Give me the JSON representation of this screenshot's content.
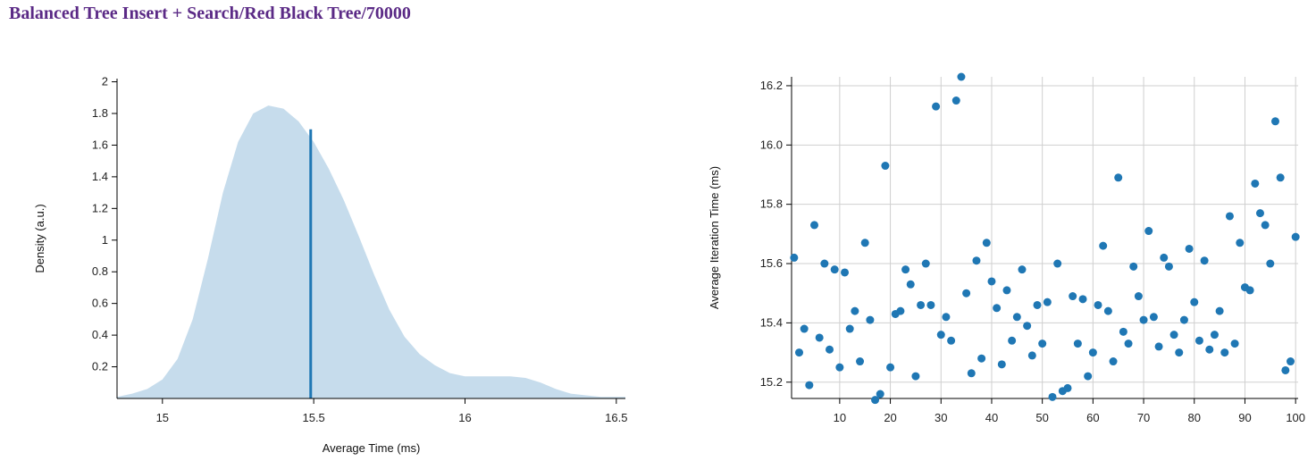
{
  "page": {
    "title": "Balanced Tree Insert + Search/Red Black Tree/70000"
  },
  "colors": {
    "title": "#5b2a86",
    "density_fill": "#c6dcec",
    "mean_line": "#1f77b4",
    "points": "#1f77b4"
  },
  "chart_data": [
    {
      "type": "area",
      "xlabel": "Average Time (ms)",
      "ylabel": "Density (a.u.)",
      "xlim": [
        14.85,
        16.53
      ],
      "ylim": [
        0,
        2.02
      ],
      "x_ticks": [
        15,
        15.5,
        16,
        16.5
      ],
      "x_tick_labels": [
        "15",
        "15.5",
        "16",
        "16.5"
      ],
      "y_ticks": [
        0.2,
        0.4,
        0.6,
        0.8,
        1,
        1.2,
        1.4,
        1.6,
        1.8,
        2
      ],
      "y_tick_labels": [
        "0.2",
        "0.4",
        "0.6",
        "0.8",
        "1",
        "1.2",
        "1.4",
        "1.6",
        "1.8",
        "2"
      ],
      "grid": false,
      "series": [
        {
          "x": [
            14.85,
            14.9,
            14.95,
            15.0,
            15.05,
            15.1,
            15.15,
            15.2,
            15.25,
            15.3,
            15.35,
            15.4,
            15.45,
            15.5,
            15.55,
            15.6,
            15.65,
            15.7,
            15.75,
            15.8,
            15.85,
            15.9,
            15.95,
            16.0,
            16.05,
            16.1,
            16.15,
            16.2,
            16.25,
            16.3,
            16.35,
            16.4,
            16.45,
            16.5,
            16.53
          ],
          "values": [
            0.01,
            0.03,
            0.06,
            0.12,
            0.25,
            0.5,
            0.88,
            1.3,
            1.62,
            1.8,
            1.85,
            1.83,
            1.75,
            1.62,
            1.45,
            1.25,
            1.02,
            0.78,
            0.56,
            0.39,
            0.28,
            0.21,
            0.16,
            0.14,
            0.14,
            0.14,
            0.14,
            0.13,
            0.1,
            0.06,
            0.03,
            0.02,
            0.01,
            0.01,
            0.01
          ]
        }
      ],
      "mean_line": {
        "x": 15.49,
        "density": 1.7
      }
    },
    {
      "type": "scatter",
      "xlabel": "",
      "ylabel": "Average Iteration Time (ms)",
      "xlim": [
        0.5,
        100.5
      ],
      "ylim": [
        15.145,
        16.23
      ],
      "x_ticks": [
        10,
        20,
        30,
        40,
        50,
        60,
        70,
        80,
        90,
        100
      ],
      "x_tick_labels": [
        "10",
        "20",
        "30",
        "40",
        "50",
        "60",
        "70",
        "80",
        "90",
        "100"
      ],
      "y_ticks": [
        15.2,
        15.4,
        15.6,
        15.8,
        16.0,
        16.2
      ],
      "y_tick_labels": [
        "15.2",
        "15.4",
        "15.6",
        "15.8",
        "16.0",
        "16.2"
      ],
      "grid": true,
      "series": [
        {
          "x": [
            1,
            2,
            3,
            4,
            5,
            6,
            7,
            8,
            9,
            10,
            11,
            12,
            13,
            14,
            15,
            16,
            17,
            18,
            19,
            20,
            21,
            22,
            23,
            24,
            25,
            26,
            27,
            28,
            29,
            30,
            31,
            32,
            33,
            34,
            35,
            36,
            37,
            38,
            39,
            40,
            41,
            42,
            43,
            44,
            45,
            46,
            47,
            48,
            49,
            50,
            51,
            52,
            53,
            54,
            55,
            56,
            57,
            58,
            59,
            60,
            61,
            62,
            63,
            64,
            65,
            66,
            67,
            68,
            69,
            70,
            71,
            72,
            73,
            74,
            75,
            76,
            77,
            78,
            79,
            80,
            81,
            82,
            83,
            84,
            85,
            86,
            87,
            88,
            89,
            90,
            91,
            92,
            93,
            94,
            95,
            96,
            97,
            98,
            99,
            100
          ],
          "values": [
            15.62,
            15.3,
            15.38,
            15.19,
            15.73,
            15.35,
            15.6,
            15.31,
            15.58,
            15.25,
            15.57,
            15.38,
            15.44,
            15.27,
            15.67,
            15.41,
            15.14,
            15.16,
            15.93,
            15.25,
            15.43,
            15.44,
            15.58,
            15.53,
            15.22,
            15.46,
            15.6,
            15.46,
            16.13,
            15.36,
            15.42,
            15.34,
            16.15,
            16.23,
            15.5,
            15.23,
            15.61,
            15.28,
            15.67,
            15.54,
            15.45,
            15.26,
            15.51,
            15.34,
            15.42,
            15.58,
            15.39,
            15.29,
            15.46,
            15.33,
            15.47,
            15.15,
            15.6,
            15.17,
            15.18,
            15.49,
            15.33,
            15.48,
            15.22,
            15.3,
            15.46,
            15.66,
            15.44,
            15.27,
            15.89,
            15.37,
            15.33,
            15.59,
            15.49,
            15.41,
            15.71,
            15.42,
            15.32,
            15.62,
            15.59,
            15.36,
            15.3,
            15.41,
            15.65,
            15.47,
            15.34,
            15.61,
            15.31,
            15.36,
            15.44,
            15.3,
            15.76,
            15.33,
            15.67,
            15.52,
            15.51,
            15.87,
            15.77,
            15.73,
            15.6,
            16.08,
            15.89,
            15.24,
            15.27,
            15.69
          ]
        }
      ]
    }
  ]
}
